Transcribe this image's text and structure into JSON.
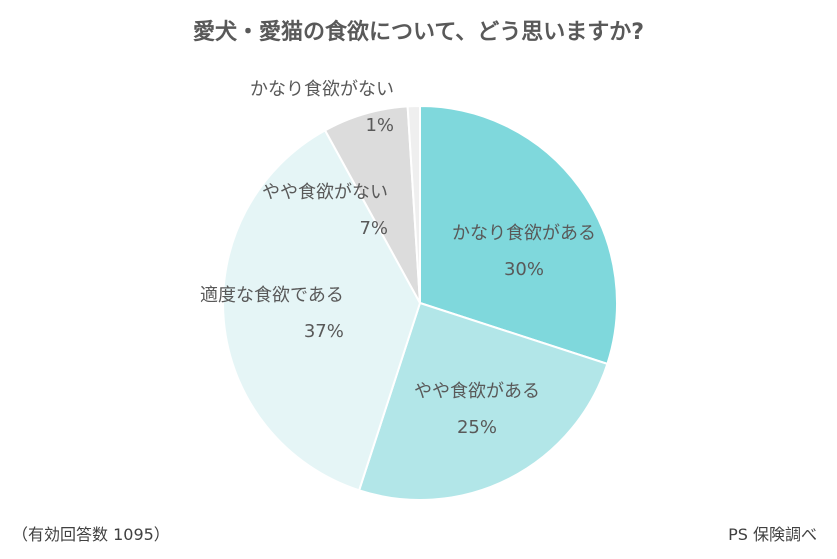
{
  "chart_data": {
    "type": "pie",
    "title": "愛犬・愛猫の食欲について、どう思いますか?",
    "slices": [
      {
        "label": "かなり食欲がある",
        "value": 30,
        "value_label": "30%",
        "color": "#7fd8dc"
      },
      {
        "label": "やや食欲がある",
        "value": 25,
        "value_label": "25%",
        "color": "#b2e6e8"
      },
      {
        "label": "適度な食欲である",
        "value": 37,
        "value_label": "37%",
        "color": "#e5f5f6"
      },
      {
        "label": "やや食欲がない",
        "value": 7,
        "value_label": "7%",
        "color": "#dcdcdc"
      },
      {
        "label": "かなり食欲がない",
        "value": 1,
        "value_label": "1%",
        "color": "#efefef"
      }
    ],
    "start": "top",
    "direction": "clockwise"
  },
  "footer": {
    "note": "（有効回答数 1095）",
    "source": "PS 保険調べ"
  }
}
